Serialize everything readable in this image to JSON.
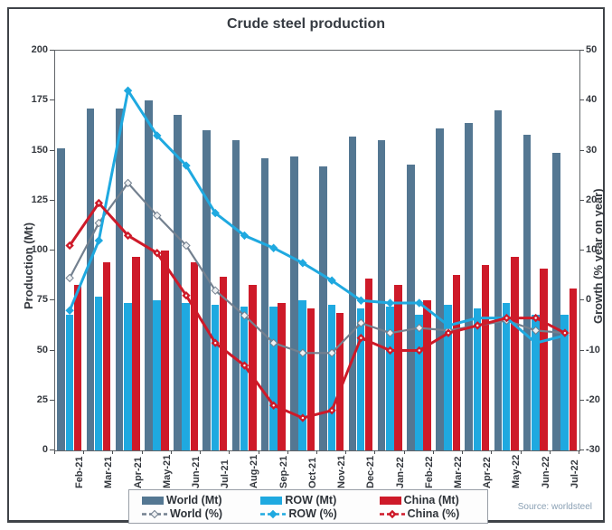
{
  "title": "Crude steel production",
  "source": "Source: worldsteel",
  "colors": {
    "world_bar": "#547792",
    "row": "#1fa9e0",
    "china": "#ce1a29",
    "world_line": "#73808f",
    "text": "#35393f",
    "source_text": "#8aa0b4"
  },
  "chart_data": {
    "type": "bar",
    "subtype": "bar-line combo, dual axis",
    "title": "Crude steel production",
    "categories": [
      "Feb-21",
      "Mar-21",
      "Apr-21",
      "May-21",
      "Jun-21",
      "Jul-21",
      "Aug-21",
      "Sep-21",
      "Oct-21",
      "Nov-21",
      "Dec-21",
      "Jan-22",
      "Feb-22",
      "Mar-22",
      "Apr-22",
      "May-22",
      "Jun-22",
      "Jul-22"
    ],
    "series": [
      {
        "name": "World (Mt)",
        "type": "bar",
        "axis": "left",
        "color": "#547792",
        "values": [
          151,
          171,
          171,
          175,
          168,
          160,
          155,
          146,
          147,
          142,
          157,
          155,
          143,
          161,
          164,
          170,
          158,
          149
        ]
      },
      {
        "name": "ROW (Mt)",
        "type": "bar",
        "axis": "left",
        "color": "#1fa9e0",
        "values": [
          68,
          77,
          74,
          75,
          74,
          73,
          72,
          72,
          75,
          73,
          71,
          72,
          68,
          73,
          71,
          74,
          68,
          68
        ]
      },
      {
        "name": "China (Mt)",
        "type": "bar",
        "axis": "left",
        "color": "#ce1a29",
        "values": [
          83,
          94,
          97,
          100,
          94,
          87,
          83,
          74,
          71,
          69,
          86,
          83,
          75,
          88,
          93,
          97,
          91,
          81
        ]
      },
      {
        "name": "World (%)",
        "type": "line",
        "axis": "right",
        "color": "#73808f",
        "marker": "diamond-white",
        "values": [
          4.5,
          15.5,
          23.5,
          17,
          11,
          2,
          -3,
          -8.5,
          -10.5,
          -10.5,
          -4.5,
          -6.5,
          -5.5,
          -6,
          -5,
          -4,
          -6,
          -6.5
        ]
      },
      {
        "name": "ROW (%)",
        "type": "line",
        "axis": "right",
        "color": "#1fa9e0",
        "marker": "diamond",
        "values": [
          -2,
          12,
          42,
          33,
          27,
          17.5,
          13,
          10.5,
          7.5,
          4,
          0,
          -0.5,
          -0.5,
          -5,
          -3.5,
          -3.5,
          -8.5,
          -7
        ]
      },
      {
        "name": "China (%)",
        "type": "line",
        "axis": "right",
        "color": "#ce1a29",
        "marker": "diamond-dot",
        "values": [
          11,
          19.5,
          13,
          9.5,
          1,
          -8.5,
          -13,
          -21,
          -23.5,
          -22,
          -7.5,
          -10,
          -10,
          -6.5,
          -5,
          -3.5,
          -3.5,
          -6.5
        ]
      }
    ],
    "left_axis": {
      "label": "Production (Mt)",
      "min": 0,
      "max": 200,
      "ticks": [
        0,
        25,
        50,
        75,
        100,
        125,
        150,
        175,
        200
      ]
    },
    "right_axis": {
      "label": "Growth (% year on year)",
      "min": -30,
      "max": 50,
      "ticks": [
        -30,
        -20,
        -10,
        0,
        10,
        20,
        30,
        40,
        50
      ]
    },
    "legend_position": "bottom",
    "grid": false,
    "source": "Source: worldsteel"
  }
}
